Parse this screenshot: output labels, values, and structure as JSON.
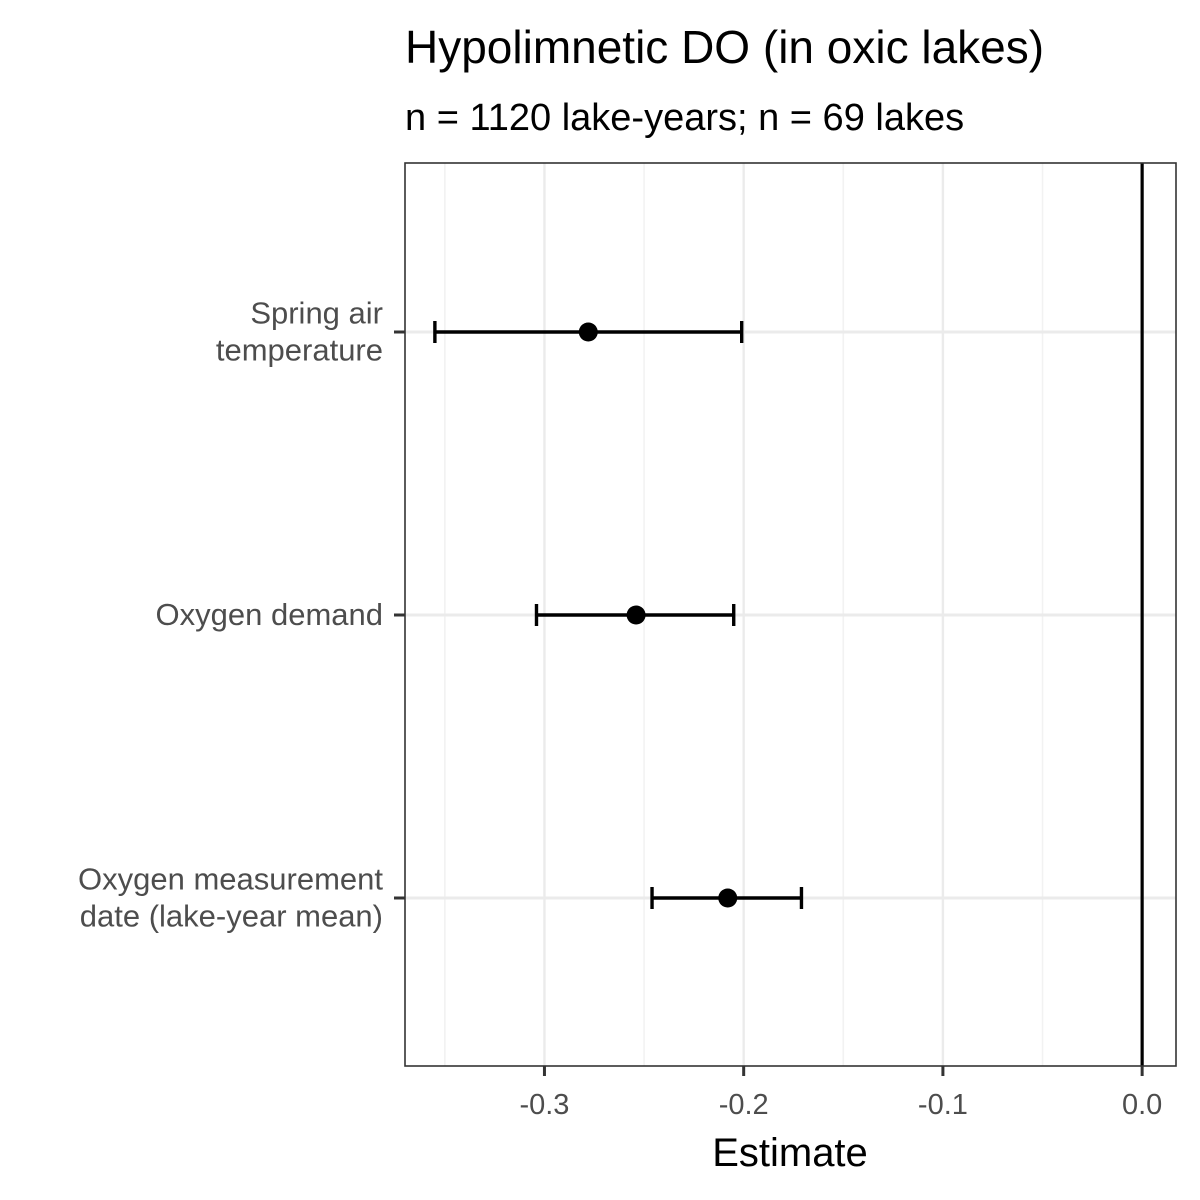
{
  "chart_data": {
    "type": "scatter",
    "title": "Hypolimnetic DO (in oxic lakes)",
    "subtitle": "n = 1120 lake-years; n = 69 lakes",
    "xlabel": "Estimate",
    "ylabel": "",
    "xlim": [
      -0.37,
      0.017
    ],
    "x_ticks": [
      {
        "value": -0.3,
        "label": "-0.3"
      },
      {
        "value": -0.2,
        "label": "-0.2"
      },
      {
        "value": -0.1,
        "label": "-0.1"
      },
      {
        "value": 0.0,
        "label": "0.0"
      }
    ],
    "x_minor_ticks": [
      -0.35,
      -0.25,
      -0.15,
      -0.05
    ],
    "reference_line": 0.0,
    "grid": true,
    "legend": "none",
    "points": [
      {
        "label_lines": [
          "Spring air",
          "temperature"
        ],
        "estimate": -0.278,
        "lower": -0.355,
        "upper": -0.201
      },
      {
        "label_lines": [
          "Oxygen demand"
        ],
        "estimate": -0.254,
        "lower": -0.304,
        "upper": -0.205
      },
      {
        "label_lines": [
          "Oxygen measurement",
          "date (lake-year mean)"
        ],
        "estimate": -0.208,
        "lower": -0.246,
        "upper": -0.171
      }
    ],
    "colors": {
      "point": "#000000",
      "panel_border": "#333333",
      "grid_major": "#ebebeb",
      "grid_minor": "#f2f2f2",
      "text_axis": "#4d4d4d"
    }
  }
}
